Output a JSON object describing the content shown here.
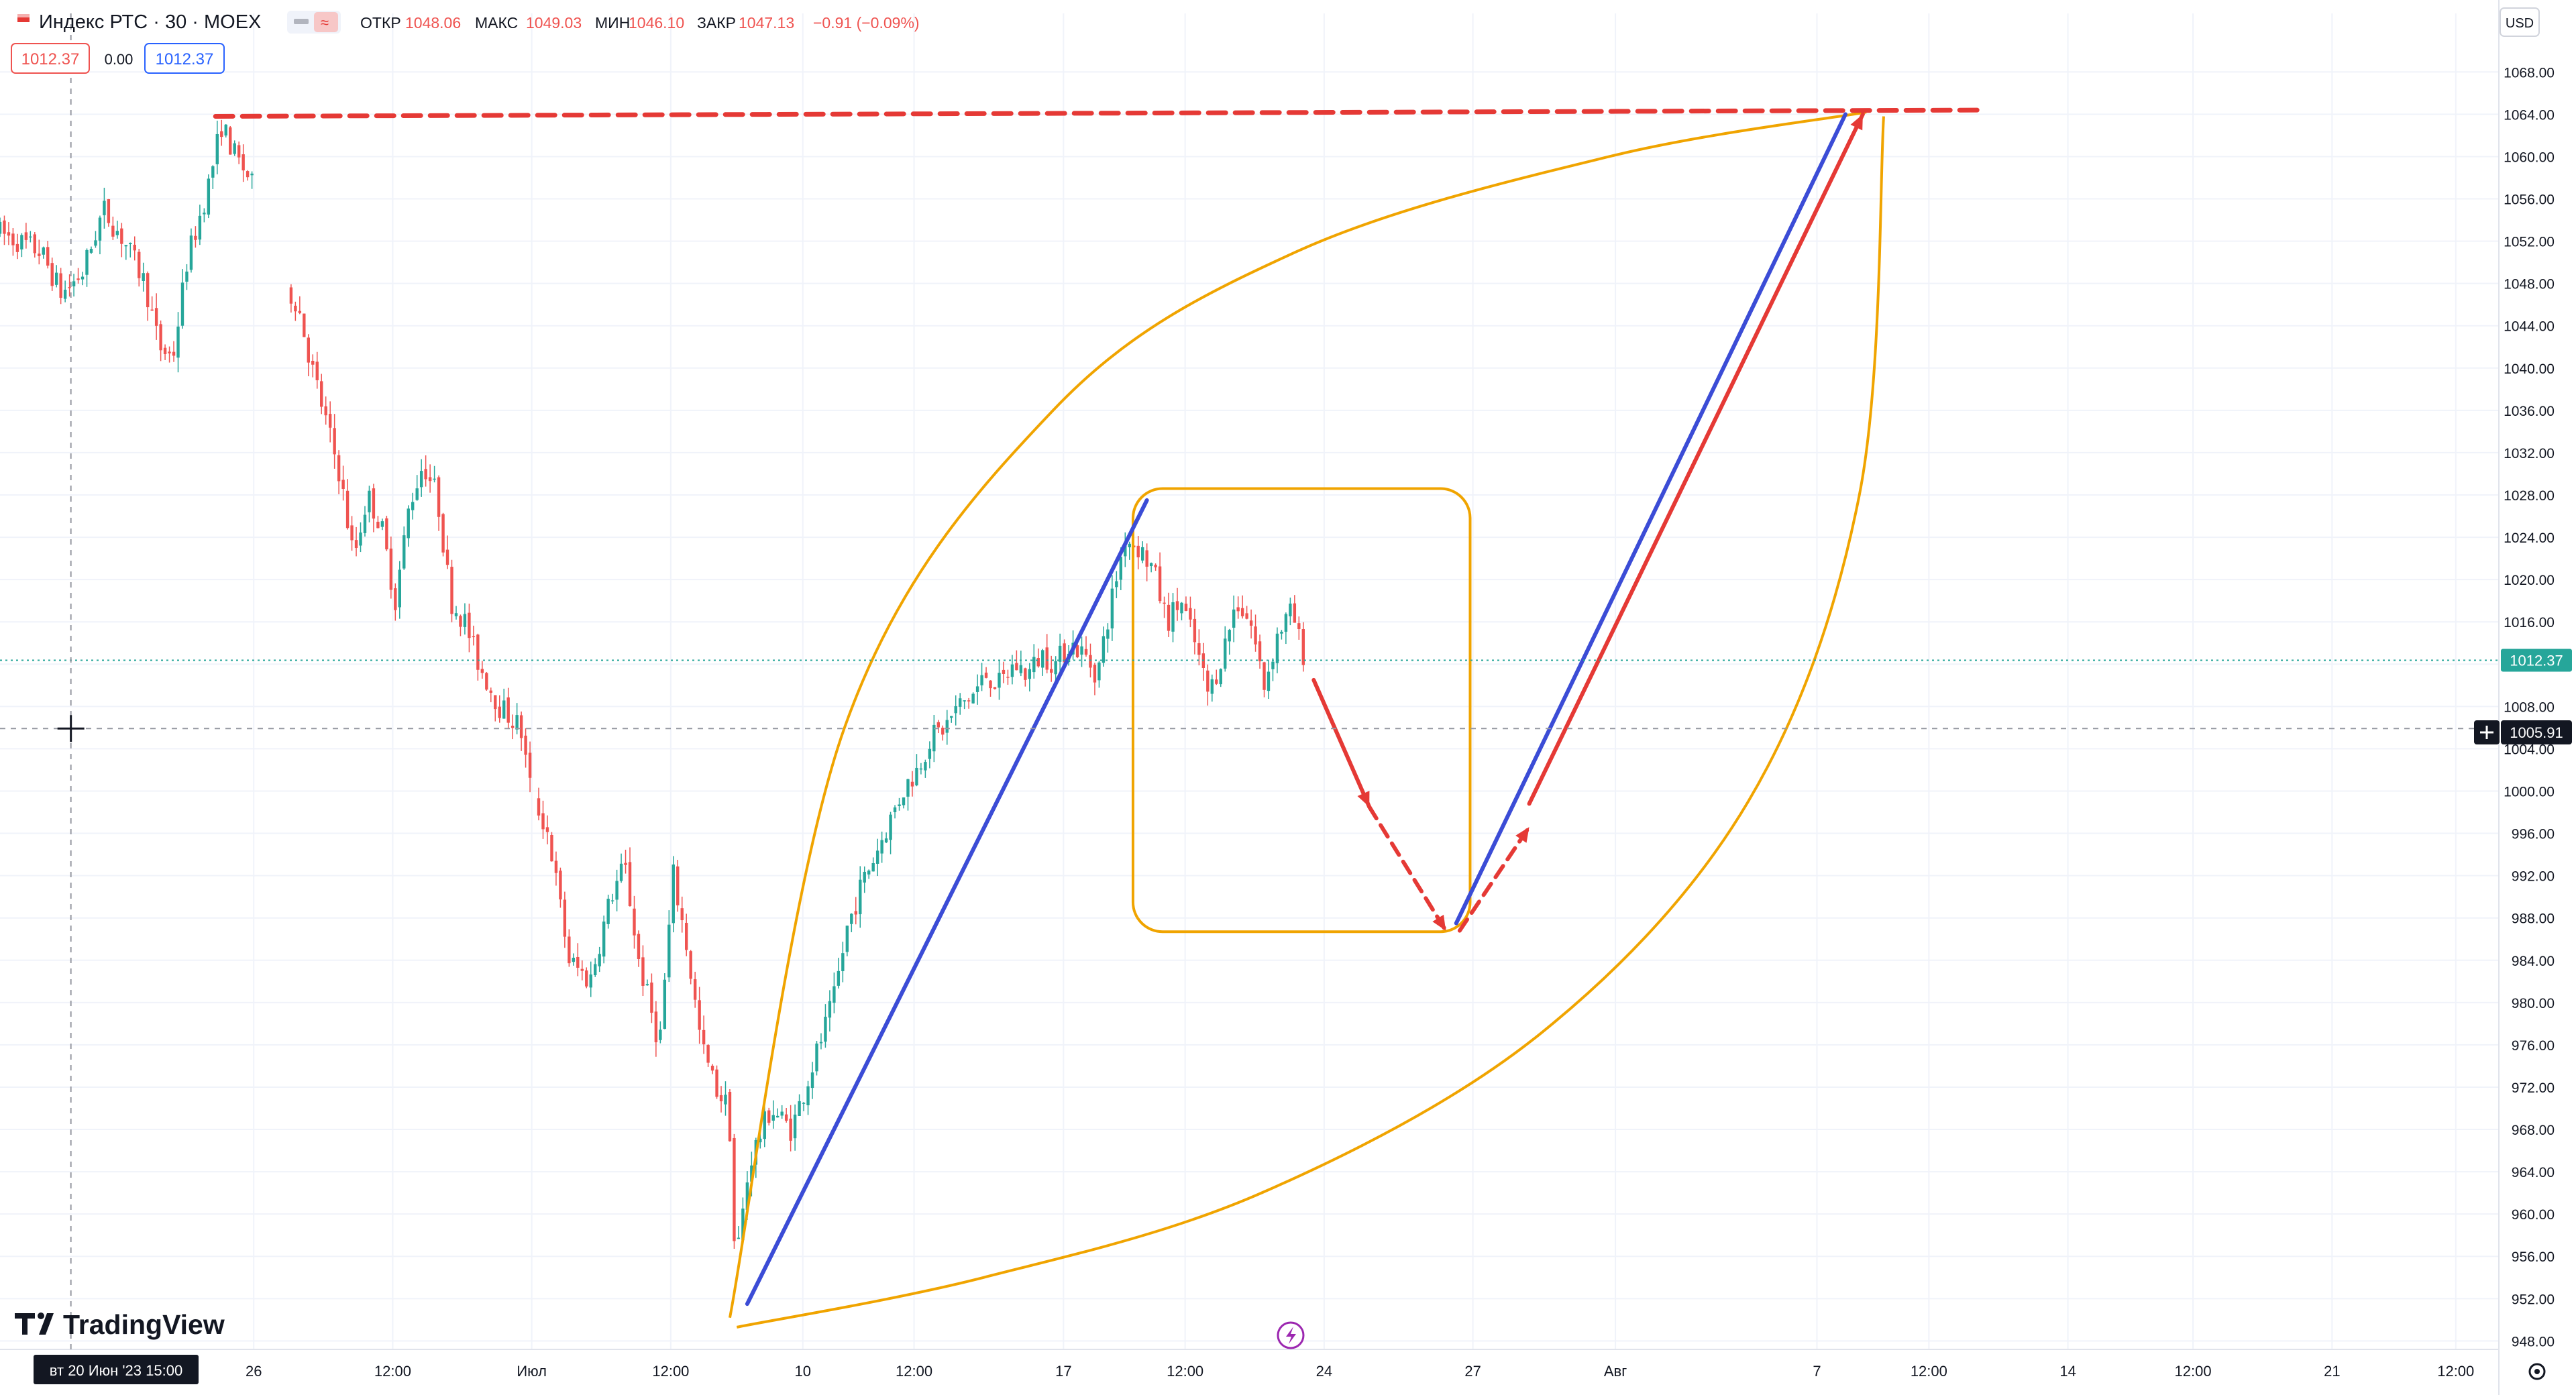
{
  "header": {
    "symbol": "Индекс РТС · 30 · MOEX",
    "ohlc": [
      {
        "label": "ОТКР",
        "value": "1048.06"
      },
      {
        "label": "МАКС",
        "value": "1049.03"
      },
      {
        "label": "МИН",
        "value": "1046.10"
      },
      {
        "label": "ЗАКР",
        "value": "1047.13"
      }
    ],
    "change": "−0.91 (−0.09%)",
    "sell_price": "1012.37",
    "spread": "0.00",
    "buy_price": "1012.37",
    "currency": "USD"
  },
  "branding": {
    "logo_text": "TradingView"
  },
  "crosshair": {
    "price_label": "1005.91",
    "time_label": "вт 20 Июн '23   15:00"
  },
  "colors": {
    "up": "#26a69a",
    "down": "#ef5350",
    "red": "#e53935",
    "blue": "#3b4cd6",
    "orange": "#f0a400",
    "grid": "#f0f3fa",
    "text": "#131722",
    "price_tag": "#26a69a"
  },
  "chart_data": {
    "type": "candlestick",
    "series": [
      {
        "name": "Индекс РТС",
        "last": 1012.37
      }
    ],
    "y_ticks": [
      948,
      952,
      956,
      960,
      964,
      968,
      972,
      976,
      980,
      984,
      988,
      992,
      996,
      1000,
      1004,
      1008,
      1012,
      1016,
      1020,
      1024,
      1028,
      1032,
      1036,
      1040,
      1044,
      1048,
      1052,
      1056,
      1060,
      1064,
      1068
    ],
    "ylim": [
      947.2,
      1071
    ],
    "x_ticks": [
      "26",
      "12:00",
      "Июл",
      "12:00",
      "10",
      "12:00",
      "17",
      "12:00",
      "24",
      "27",
      "Авг",
      "7",
      "12:00",
      "14",
      "12:00",
      "21",
      "12:00"
    ],
    "x_tick_positions_days": [
      3,
      5,
      7,
      9,
      10.9,
      12.5,
      14.65,
      16.4,
      18.4,
      20.54,
      22.59,
      25.49,
      27.1,
      29.1,
      30.9,
      32.9,
      34.68
    ],
    "xlim_days": [
      -0.65,
      35.3
    ],
    "price_path": [
      [
        -0.65,
        1053
      ],
      [
        0.0,
        1051
      ],
      [
        0.3,
        1047
      ],
      [
        0.6,
        1049
      ],
      [
        0.9,
        1055
      ],
      [
        1.2,
        1052
      ],
      [
        1.5,
        1048
      ],
      [
        1.7,
        1042
      ],
      [
        1.9,
        1041
      ],
      [
        2.1,
        1050
      ],
      [
        2.4,
        1057
      ],
      [
        2.6,
        1063
      ],
      [
        2.8,
        1060
      ],
      [
        3.0,
        1058
      ],
      [
        3.5,
        1048
      ],
      [
        3.7,
        1046
      ],
      [
        3.9,
        1040
      ],
      [
        4.1,
        1035
      ],
      [
        4.3,
        1030
      ],
      [
        4.5,
        1022
      ],
      [
        4.7,
        1028
      ],
      [
        4.9,
        1025
      ],
      [
        5.1,
        1018
      ],
      [
        5.3,
        1027
      ],
      [
        5.5,
        1031
      ],
      [
        5.7,
        1028
      ],
      [
        5.9,
        1018
      ],
      [
        6.1,
        1016
      ],
      [
        6.3,
        1012
      ],
      [
        6.6,
        1008
      ],
      [
        6.9,
        1006
      ],
      [
        7.05,
        1000
      ],
      [
        7.3,
        996
      ],
      [
        7.6,
        984
      ],
      [
        7.9,
        982
      ],
      [
        8.2,
        990
      ],
      [
        8.4,
        993
      ],
      [
        8.6,
        984
      ],
      [
        8.9,
        976
      ],
      [
        9.1,
        992
      ],
      [
        9.3,
        985
      ],
      [
        9.5,
        976
      ],
      [
        9.7,
        972
      ],
      [
        9.9,
        970
      ],
      [
        9.99,
        955
      ],
      [
        10.2,
        965
      ],
      [
        10.5,
        970
      ],
      [
        10.8,
        968
      ],
      [
        11.0,
        972
      ],
      [
        11.2,
        976
      ],
      [
        11.4,
        980
      ],
      [
        11.6,
        987
      ],
      [
        11.8,
        991
      ],
      [
        12.0,
        994
      ],
      [
        12.2,
        997
      ],
      [
        12.4,
        1000
      ],
      [
        12.6,
        1002
      ],
      [
        12.8,
        1005
      ],
      [
        13.0,
        1006
      ],
      [
        13.2,
        1008
      ],
      [
        13.4,
        1009
      ],
      [
        13.6,
        1011
      ],
      [
        13.8,
        1010
      ],
      [
        14.0,
        1012
      ],
      [
        14.2,
        1011
      ],
      [
        14.4,
        1013
      ],
      [
        14.6,
        1012
      ],
      [
        14.8,
        1014
      ],
      [
        15.0,
        1013
      ],
      [
        15.2,
        1011
      ],
      [
        15.4,
        1018
      ],
      [
        15.6,
        1024
      ],
      [
        15.8,
        1023
      ],
      [
        16.0,
        1021
      ],
      [
        16.2,
        1016
      ],
      [
        16.4,
        1018
      ],
      [
        16.6,
        1014
      ],
      [
        16.8,
        1009
      ],
      [
        17.0,
        1013
      ],
      [
        17.2,
        1018
      ],
      [
        17.4,
        1016
      ],
      [
        17.6,
        1010
      ],
      [
        17.8,
        1015
      ],
      [
        18.0,
        1017
      ],
      [
        18.15,
        1013
      ]
    ],
    "drawings": {
      "red_dashed_resistance": {
        "x": [
          2.45,
          27.9
        ],
        "y": [
          1063.8,
          1064.4
        ]
      },
      "blue_trend_1": {
        "x": [
          10.1,
          15.85
        ],
        "y": [
          951.5,
          1027.5
        ]
      },
      "blue_trend_2": {
        "x": [
          20.3,
          25.9
        ],
        "y": [
          987.5,
          1064
        ]
      },
      "red_arrow_down_solid": {
        "x": [
          18.25,
          19.05
        ],
        "y": [
          1010.5,
          998.5
        ]
      },
      "red_arrow_down_dashed": {
        "x": [
          19.05,
          20.15
        ],
        "y": [
          998.5,
          986.8
        ]
      },
      "red_arrow_up_dashed": {
        "x": [
          20.35,
          21.35
        ],
        "y": [
          986.8,
          996.6
        ]
      },
      "red_arrow_up_solid": {
        "x": [
          21.35,
          26.15
        ],
        "y": [
          998.8,
          1064
        ]
      },
      "orange_rounded_rect": {
        "x": [
          15.65,
          20.5
        ],
        "y": [
          986.7,
          1028.6
        ]
      },
      "orange_lens_top": [
        [
          9.85,
          950.2
        ],
        [
          11.5,
          1006
        ],
        [
          14.5,
          1036
        ],
        [
          18,
          1051
        ],
        [
          22.5,
          1060
        ],
        [
          26.2,
          1064.2
        ]
      ],
      "orange_lens_bottom": [
        [
          9.95,
          949.3
        ],
        [
          13.5,
          954
        ],
        [
          17.5,
          962
        ],
        [
          21.5,
          977
        ],
        [
          24.5,
          999
        ],
        [
          26.1,
          1028
        ],
        [
          26.45,
          1063.8
        ]
      ]
    }
  }
}
